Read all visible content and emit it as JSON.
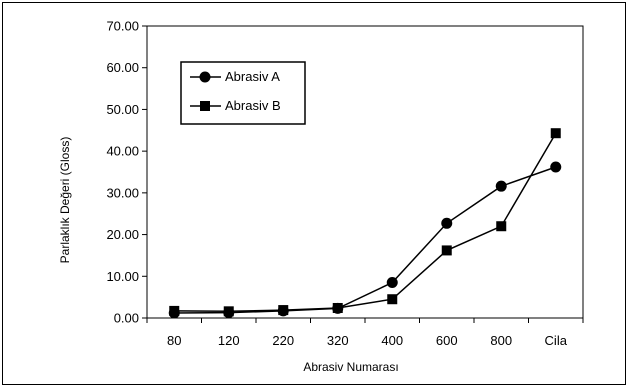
{
  "chart_data": {
    "type": "line",
    "title": "",
    "xlabel": "Abrasiv Numarası",
    "ylabel": "Parlaklık Değeri (Gloss)",
    "categories": [
      "80",
      "120",
      "220",
      "320",
      "400",
      "600",
      "800",
      "Cila"
    ],
    "ylim": [
      0,
      70
    ],
    "yticks": [
      "0.00",
      "10.00",
      "20.00",
      "30.00",
      "40.00",
      "50.00",
      "60.00",
      "70.00"
    ],
    "grid": false,
    "legend_placement": "upper-left",
    "series": [
      {
        "name": "Abrasiv A",
        "marker": "circle",
        "color": "#000000",
        "values": [
          1.2,
          1.3,
          1.7,
          2.3,
          8.5,
          22.7,
          31.6,
          36.2
        ]
      },
      {
        "name": "Abrasiv B",
        "marker": "square",
        "color": "#000000",
        "values": [
          1.7,
          1.6,
          1.9,
          2.4,
          4.5,
          16.2,
          22.0,
          44.3
        ]
      }
    ]
  }
}
